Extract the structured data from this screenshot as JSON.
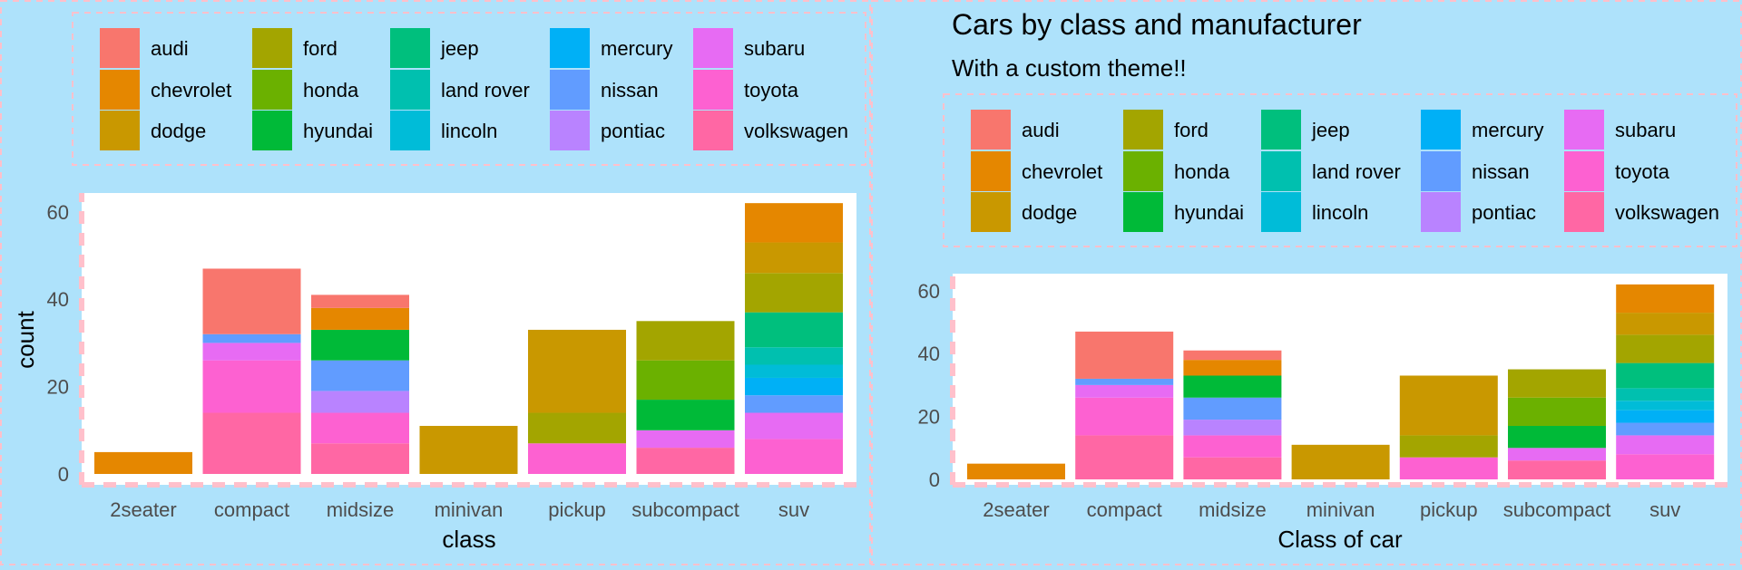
{
  "legend_order": [
    "audi",
    "chevrolet",
    "dodge",
    "ford",
    "honda",
    "hyundai",
    "jeep",
    "land rover",
    "lincoln",
    "mercury",
    "nissan",
    "pontiac",
    "subaru",
    "toyota",
    "volkswagen"
  ],
  "colors": {
    "audi": "#f8766d",
    "chevrolet": "#e58700",
    "dodge": "#c99800",
    "ford": "#a3a500",
    "honda": "#6bb100",
    "hyundai": "#00ba38",
    "jeep": "#00bf7d",
    "land rover": "#00c0af",
    "lincoln": "#00bcd8",
    "mercury": "#00b0f6",
    "nissan": "#619cff",
    "pontiac": "#b983ff",
    "subaru": "#e76bf3",
    "toyota": "#fd61d1",
    "volkswagen": "#ff67a4",
    "page_background": "#aee2fb",
    "panel_background": "#ffffff",
    "dashed_border": "#ffc0cb"
  },
  "chart_data": [
    {
      "type": "bar",
      "stacked": true,
      "title": "",
      "subtitle": "",
      "xlabel": "class",
      "ylabel": "count",
      "ylim": [
        0,
        63
      ],
      "yticks": [
        0,
        20,
        40,
        60
      ],
      "legend_position": "top",
      "categories": [
        "2seater",
        "compact",
        "midsize",
        "minivan",
        "pickup",
        "subcompact",
        "suv"
      ],
      "stack_order": [
        "volkswagen",
        "toyota",
        "subaru",
        "pontiac",
        "nissan",
        "mercury",
        "lincoln",
        "land rover",
        "jeep",
        "hyundai",
        "honda",
        "ford",
        "dodge",
        "chevrolet",
        "audi"
      ],
      "series": [
        {
          "name": "audi",
          "values": [
            0,
            15,
            3,
            0,
            0,
            0,
            0
          ]
        },
        {
          "name": "chevrolet",
          "values": [
            5,
            0,
            5,
            0,
            0,
            0,
            9
          ]
        },
        {
          "name": "dodge",
          "values": [
            0,
            0,
            0,
            11,
            19,
            0,
            7
          ]
        },
        {
          "name": "ford",
          "values": [
            0,
            0,
            0,
            0,
            7,
            9,
            9
          ]
        },
        {
          "name": "honda",
          "values": [
            0,
            0,
            0,
            0,
            0,
            9,
            0
          ]
        },
        {
          "name": "hyundai",
          "values": [
            0,
            0,
            7,
            0,
            0,
            7,
            0
          ]
        },
        {
          "name": "jeep",
          "values": [
            0,
            0,
            0,
            0,
            0,
            0,
            8
          ]
        },
        {
          "name": "land rover",
          "values": [
            0,
            0,
            0,
            0,
            0,
            0,
            4
          ]
        },
        {
          "name": "lincoln",
          "values": [
            0,
            0,
            0,
            0,
            0,
            0,
            3
          ]
        },
        {
          "name": "mercury",
          "values": [
            0,
            0,
            0,
            0,
            0,
            0,
            4
          ]
        },
        {
          "name": "nissan",
          "values": [
            0,
            2,
            7,
            0,
            0,
            0,
            4
          ]
        },
        {
          "name": "pontiac",
          "values": [
            0,
            0,
            5,
            0,
            0,
            0,
            0
          ]
        },
        {
          "name": "subaru",
          "values": [
            0,
            4,
            0,
            0,
            0,
            4,
            6
          ]
        },
        {
          "name": "toyota",
          "values": [
            0,
            12,
            7,
            0,
            7,
            0,
            8
          ]
        },
        {
          "name": "volkswagen",
          "values": [
            0,
            14,
            7,
            0,
            0,
            6,
            0
          ]
        }
      ]
    },
    {
      "type": "bar",
      "stacked": true,
      "title": "Cars by class and manufacturer",
      "subtitle": "With a custom theme!!",
      "xlabel": "Class of car",
      "ylabel": "",
      "ylim": [
        0,
        63
      ],
      "yticks": [
        0,
        20,
        40,
        60
      ],
      "legend_position": "top",
      "categories": [
        "2seater",
        "compact",
        "midsize",
        "minivan",
        "pickup",
        "subcompact",
        "suv"
      ],
      "stack_order": [
        "volkswagen",
        "toyota",
        "subaru",
        "pontiac",
        "nissan",
        "mercury",
        "lincoln",
        "land rover",
        "jeep",
        "hyundai",
        "honda",
        "ford",
        "dodge",
        "chevrolet",
        "audi"
      ],
      "series": [
        {
          "name": "audi",
          "values": [
            0,
            15,
            3,
            0,
            0,
            0,
            0
          ]
        },
        {
          "name": "chevrolet",
          "values": [
            5,
            0,
            5,
            0,
            0,
            0,
            9
          ]
        },
        {
          "name": "dodge",
          "values": [
            0,
            0,
            0,
            11,
            19,
            0,
            7
          ]
        },
        {
          "name": "ford",
          "values": [
            0,
            0,
            0,
            0,
            7,
            9,
            9
          ]
        },
        {
          "name": "honda",
          "values": [
            0,
            0,
            0,
            0,
            0,
            9,
            0
          ]
        },
        {
          "name": "hyundai",
          "values": [
            0,
            0,
            7,
            0,
            0,
            7,
            0
          ]
        },
        {
          "name": "jeep",
          "values": [
            0,
            0,
            0,
            0,
            0,
            0,
            8
          ]
        },
        {
          "name": "land rover",
          "values": [
            0,
            0,
            0,
            0,
            0,
            0,
            4
          ]
        },
        {
          "name": "lincoln",
          "values": [
            0,
            0,
            0,
            0,
            0,
            0,
            3
          ]
        },
        {
          "name": "mercury",
          "values": [
            0,
            0,
            0,
            0,
            0,
            0,
            4
          ]
        },
        {
          "name": "nissan",
          "values": [
            0,
            2,
            7,
            0,
            0,
            0,
            4
          ]
        },
        {
          "name": "pontiac",
          "values": [
            0,
            0,
            5,
            0,
            0,
            0,
            0
          ]
        },
        {
          "name": "subaru",
          "values": [
            0,
            4,
            0,
            0,
            0,
            4,
            6
          ]
        },
        {
          "name": "toyota",
          "values": [
            0,
            12,
            7,
            0,
            7,
            0,
            8
          ]
        },
        {
          "name": "volkswagen",
          "values": [
            0,
            14,
            7,
            0,
            0,
            6,
            0
          ]
        }
      ]
    }
  ]
}
